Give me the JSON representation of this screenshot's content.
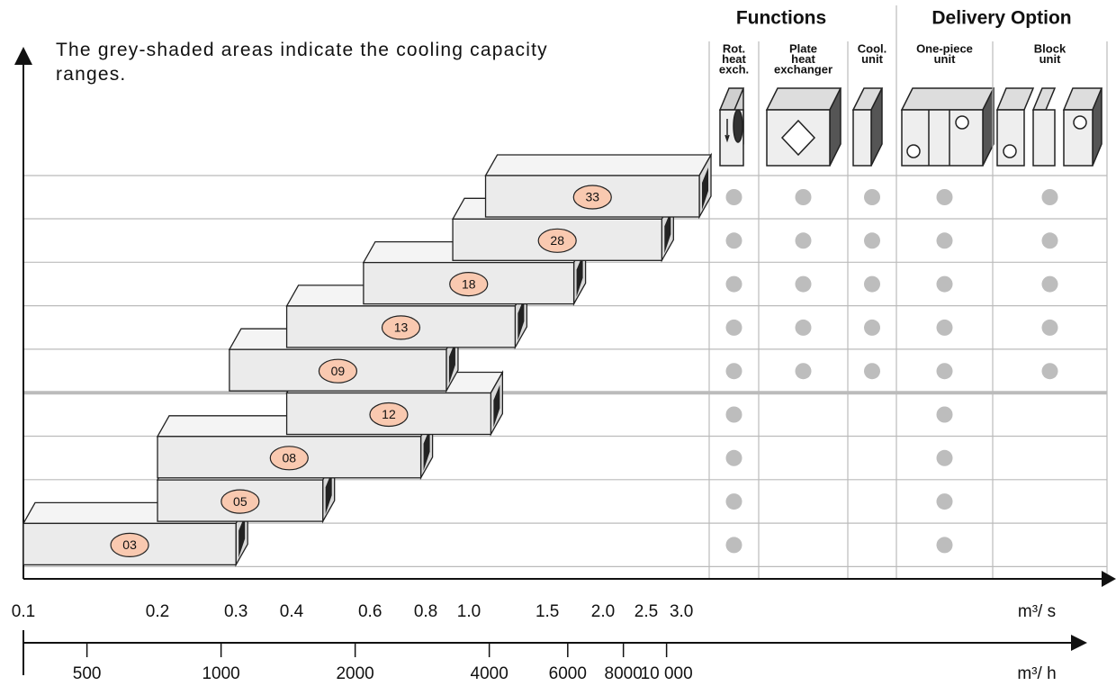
{
  "note": "The grey-shaded areas indicate the cooling capacity ranges.",
  "chart_data": {
    "type": "range-bar",
    "categories": [
      "33",
      "28",
      "18",
      "13",
      "09",
      "12",
      "08",
      "05",
      "03"
    ],
    "low": [
      1.09,
      0.92,
      0.58,
      0.39,
      0.29,
      0.39,
      0.2,
      0.2,
      0.1
    ],
    "high": [
      3.29,
      2.71,
      1.72,
      1.27,
      0.89,
      1.12,
      0.78,
      0.47,
      0.3
    ],
    "x_scale": "log",
    "xlim": [
      0.1,
      10
    ],
    "xticks": [
      0.1,
      0.2,
      0.3,
      0.4,
      0.6,
      0.8,
      {
        "value": 1,
        "label": "1.0"
      },
      1.5,
      {
        "value": 2,
        "label": "2.0"
      },
      2.5,
      {
        "value": 3,
        "label": "3.0"
      }
    ],
    "xlabel": "m³/ s",
    "x2lim": [
      360,
      36000
    ],
    "x2ticks": [
      500,
      1000,
      2000,
      4000,
      6000,
      8000,
      {
        "value": 10000,
        "label": "10 000"
      }
    ],
    "x2label": "m³/ h",
    "color": "#ebebeb",
    "label_color": "#f9c9b0"
  },
  "table": {
    "groups": [
      {
        "title": "Functions",
        "columns": [
          {
            "lines": [
              "Rot.",
              "heat",
              "exch."
            ]
          },
          {
            "lines": [
              "Plate",
              "heat",
              "exchanger"
            ]
          },
          {
            "lines": [
              "Cool.",
              "unit"
            ]
          }
        ]
      },
      {
        "title": "Delivery Option",
        "columns": [
          {
            "lines": [
              "One-piece",
              "unit"
            ]
          },
          {
            "lines": [
              "Block",
              "unit"
            ]
          }
        ]
      }
    ],
    "availability": [
      [
        true,
        true,
        true,
        true,
        true
      ],
      [
        true,
        true,
        true,
        true,
        true
      ],
      [
        true,
        true,
        true,
        true,
        true
      ],
      [
        true,
        true,
        true,
        true,
        true
      ],
      [
        true,
        true,
        true,
        true,
        true
      ],
      [
        true,
        false,
        false,
        true,
        false
      ],
      [
        true,
        false,
        false,
        true,
        false
      ],
      [
        true,
        false,
        false,
        true,
        false
      ],
      [
        true,
        false,
        false,
        true,
        false
      ]
    ]
  }
}
